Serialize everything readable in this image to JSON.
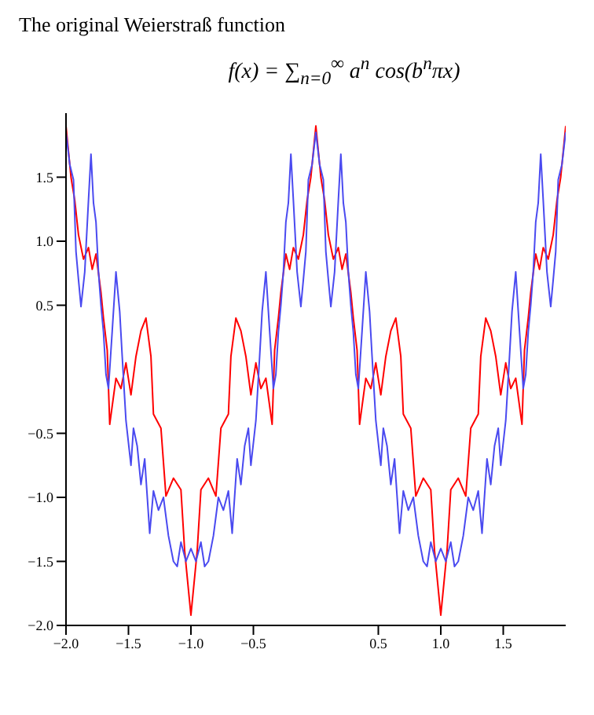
{
  "chart_data": {
    "type": "line",
    "title": "The original Weierstraß function",
    "subtitle": "f(x) = ∑$_{n=0}$$^{∞}$ a$^{n}$ cos(b$^{n}$πx)",
    "xlim": [
      -2,
      2
    ],
    "ylim": [
      -2,
      2
    ],
    "xticks": [
      {
        "value": -2,
        "label": "−2.0"
      },
      {
        "value": -1.5,
        "label": "−1.5"
      },
      {
        "value": -1,
        "label": "−1.0"
      },
      {
        "value": -0.5,
        "label": "−0.5"
      },
      {
        "value": 0.5,
        "label": "0.5"
      },
      {
        "value": 1,
        "label": "1.0"
      },
      {
        "value": 1.5,
        "label": "1.5"
      }
    ],
    "yticks": [
      {
        "value": -2,
        "label": "−2.0"
      },
      {
        "value": -1.5,
        "label": "−1.5"
      },
      {
        "value": -1,
        "label": "−1.0"
      },
      {
        "value": -0.5,
        "label": "−0.5"
      },
      {
        "value": 0.5,
        "label": "0.5"
      },
      {
        "value": 1,
        "label": "1.0"
      },
      {
        "value": 1.5,
        "label": "1.5"
      }
    ],
    "grid": false,
    "legend": false,
    "marker": "none",
    "line_style": "solid",
    "series": [
      {
        "color": "#ff0000",
        "x": [
          -2,
          -1.96,
          -1.93,
          -1.9,
          -1.86,
          -1.82,
          -1.79,
          -1.76,
          -1.72,
          -1.7,
          -1.67,
          -1.65,
          -1.6,
          -1.56,
          -1.52,
          -1.48,
          -1.44,
          -1.4,
          -1.36,
          -1.32,
          -1.3,
          -1.24,
          -1.2,
          -1.14,
          -1.08,
          -1.05,
          -1,
          -0.95,
          -0.92,
          -0.86,
          -0.8,
          -0.76,
          -0.7,
          -0.68,
          -0.64,
          -0.6,
          -0.56,
          -0.52,
          -0.48,
          -0.44,
          -0.4,
          -0.35,
          -0.33,
          -0.3,
          -0.28,
          -0.24,
          -0.21,
          -0.18,
          -0.14,
          -0.1,
          -0.07,
          -0.04,
          0,
          0.04,
          0.07,
          0.1,
          0.14,
          0.18,
          0.21,
          0.24,
          0.28,
          0.3,
          0.33,
          0.35,
          0.4,
          0.44,
          0.48,
          0.52,
          0.56,
          0.6,
          0.64,
          0.68,
          0.7,
          0.76,
          0.8,
          0.86,
          0.92,
          0.95,
          1,
          1.05,
          1.08,
          1.14,
          1.2,
          1.24,
          1.3,
          1.32,
          1.36,
          1.4,
          1.44,
          1.48,
          1.52,
          1.56,
          1.6,
          1.65,
          1.67,
          1.7,
          1.72,
          1.76,
          1.79,
          1.82,
          1.86,
          1.9,
          1.93,
          1.96,
          2
        ],
        "values": [
          1.9,
          1.5,
          1.32,
          1.05,
          0.86,
          0.95,
          0.78,
          0.9,
          0.6,
          0.4,
          0.15,
          -0.43,
          -0.07,
          -0.15,
          0.05,
          -0.2,
          0.1,
          0.3,
          0.4,
          0.1,
          -0.35,
          -0.46,
          -0.99,
          -0.85,
          -0.94,
          -1.42,
          -1.92,
          -1.42,
          -0.94,
          -0.85,
          -0.99,
          -0.46,
          -0.35,
          0.1,
          0.4,
          0.3,
          0.1,
          -0.2,
          0.05,
          -0.15,
          -0.07,
          -0.43,
          0.15,
          0.4,
          0.6,
          0.9,
          0.78,
          0.95,
          0.86,
          1.05,
          1.32,
          1.5,
          1.9,
          1.5,
          1.32,
          1.05,
          0.86,
          0.95,
          0.78,
          0.9,
          0.6,
          0.4,
          0.15,
          -0.43,
          -0.07,
          -0.15,
          0.05,
          -0.2,
          0.1,
          0.3,
          0.4,
          0.1,
          -0.35,
          -0.46,
          -0.99,
          -0.85,
          -0.94,
          -1.42,
          -1.92,
          -1.42,
          -0.94,
          -0.85,
          -0.99,
          -0.46,
          -0.35,
          0.1,
          0.4,
          0.3,
          0.1,
          -0.2,
          0.05,
          -0.15,
          -0.07,
          -0.43,
          0.15,
          0.4,
          0.6,
          0.9,
          0.78,
          0.95,
          0.86,
          1.05,
          1.32,
          1.5,
          1.9
        ]
      },
      {
        "color": "#4a4af0",
        "x": [
          -2,
          -1.97,
          -1.94,
          -1.92,
          -1.9,
          -1.88,
          -1.85,
          -1.82,
          -1.8,
          -1.78,
          -1.76,
          -1.74,
          -1.72,
          -1.7,
          -1.68,
          -1.66,
          -1.63,
          -1.6,
          -1.57,
          -1.55,
          -1.52,
          -1.48,
          -1.46,
          -1.43,
          -1.4,
          -1.37,
          -1.33,
          -1.3,
          -1.26,
          -1.22,
          -1.18,
          -1.14,
          -1.11,
          -1.08,
          -1.04,
          -1,
          -0.96,
          -0.92,
          -0.89,
          -0.86,
          -0.82,
          -0.78,
          -0.74,
          -0.7,
          -0.67,
          -0.63,
          -0.6,
          -0.57,
          -0.54,
          -0.52,
          -0.48,
          -0.45,
          -0.43,
          -0.4,
          -0.37,
          -0.34,
          -0.32,
          -0.3,
          -0.28,
          -0.26,
          -0.24,
          -0.22,
          -0.2,
          -0.18,
          -0.15,
          -0.12,
          -0.1,
          -0.08,
          -0.06,
          -0.03,
          0,
          0.03,
          0.06,
          0.08,
          0.1,
          0.12,
          0.15,
          0.18,
          0.2,
          0.22,
          0.24,
          0.26,
          0.28,
          0.3,
          0.32,
          0.34,
          0.37,
          0.4,
          0.43,
          0.45,
          0.48,
          0.52,
          0.54,
          0.57,
          0.6,
          0.63,
          0.67,
          0.7,
          0.74,
          0.78,
          0.82,
          0.86,
          0.89,
          0.92,
          0.96,
          1,
          1.04,
          1.08,
          1.11,
          1.14,
          1.18,
          1.22,
          1.26,
          1.3,
          1.33,
          1.37,
          1.4,
          1.43,
          1.46,
          1.48,
          1.52,
          1.55,
          1.57,
          1.6,
          1.63,
          1.66,
          1.68,
          1.7,
          1.72,
          1.74,
          1.76,
          1.78,
          1.8,
          1.82,
          1.85,
          1.88,
          1.9,
          1.92,
          1.94,
          1.97,
          2
        ],
        "values": [
          1.85,
          1.6,
          1.48,
          0.92,
          0.7,
          0.49,
          0.76,
          1.32,
          1.68,
          1.3,
          1.15,
          0.76,
          0.5,
          0.29,
          -0.04,
          -0.15,
          0.3,
          0.76,
          0.45,
          0.1,
          -0.4,
          -0.75,
          -0.46,
          -0.6,
          -0.9,
          -0.7,
          -1.28,
          -0.95,
          -1.1,
          -1.0,
          -1.3,
          -1.5,
          -1.54,
          -1.35,
          -1.5,
          -1.4,
          -1.5,
          -1.35,
          -1.54,
          -1.5,
          -1.3,
          -1.0,
          -1.1,
          -0.95,
          -1.28,
          -0.7,
          -0.9,
          -0.6,
          -0.46,
          -0.75,
          -0.4,
          0.1,
          0.45,
          0.76,
          0.3,
          -0.15,
          -0.04,
          0.29,
          0.5,
          0.76,
          1.15,
          1.3,
          1.68,
          1.32,
          0.76,
          0.49,
          0.7,
          0.92,
          1.48,
          1.6,
          1.85,
          1.6,
          1.48,
          0.92,
          0.7,
          0.49,
          0.76,
          1.32,
          1.68,
          1.3,
          1.15,
          0.76,
          0.5,
          0.29,
          -0.04,
          -0.15,
          0.3,
          0.76,
          0.45,
          0.1,
          -0.4,
          -0.75,
          -0.46,
          -0.6,
          -0.9,
          -0.7,
          -1.28,
          -0.95,
          -1.1,
          -1.0,
          -1.3,
          -1.5,
          -1.54,
          -1.35,
          -1.5,
          -1.4,
          -1.5,
          -1.35,
          -1.54,
          -1.5,
          -1.3,
          -1.0,
          -1.1,
          -0.95,
          -1.28,
          -0.7,
          -0.9,
          -0.6,
          -0.46,
          -0.75,
          -0.4,
          0.1,
          0.45,
          0.76,
          0.3,
          -0.15,
          -0.04,
          0.29,
          0.5,
          0.76,
          1.15,
          1.3,
          1.68,
          1.32,
          0.76,
          0.49,
          0.7,
          0.92,
          1.48,
          1.6,
          1.85
        ]
      }
    ]
  }
}
